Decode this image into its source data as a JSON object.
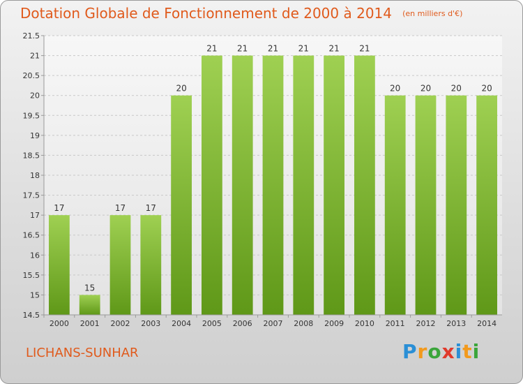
{
  "title": "Dotation Globale de Fonctionnement de 2000 à 2014",
  "unit": "(en milliers d'€)",
  "commune": "LICHANS-SUNHAR",
  "logo": {
    "text": "Proxiti",
    "letters": [
      {
        "ch": "P",
        "color": "#2a8fd6"
      },
      {
        "ch": "r",
        "color": "#f29a1d"
      },
      {
        "ch": "o",
        "color": "#3aa53a"
      },
      {
        "ch": "x",
        "color": "#e0392b"
      },
      {
        "ch": "i",
        "color": "#2a8fd6"
      },
      {
        "ch": "t",
        "color": "#f29a1d"
      },
      {
        "ch": "i",
        "color": "#3aa53a"
      }
    ]
  },
  "colors": {
    "accent": "#e05a1c",
    "bar_top": "#9fd052",
    "bar_bottom": "#5f9818",
    "grid": "#c8c8c8",
    "axis": "#999999",
    "text": "#333333"
  },
  "chart_data": {
    "type": "bar",
    "title": "Dotation Globale de Fonctionnement de 2000 à 2014",
    "subtitle": "(en milliers d'€)",
    "xlabel": "",
    "ylabel": "",
    "categories": [
      "2000",
      "2001",
      "2002",
      "2003",
      "2004",
      "2005",
      "2006",
      "2007",
      "2008",
      "2009",
      "2010",
      "2011",
      "2012",
      "2013",
      "2014"
    ],
    "values": [
      17,
      15,
      17,
      17,
      20,
      21,
      21,
      21,
      21,
      21,
      21,
      20,
      20,
      20,
      20
    ],
    "ylim": [
      14.5,
      21.5
    ],
    "yticks": [
      "14.5",
      "15",
      "15.5",
      "16",
      "16.5",
      "17",
      "17.5",
      "18",
      "18.5",
      "19",
      "19.5",
      "20",
      "20.5",
      "21",
      "21.5"
    ],
    "grid": true,
    "legend": "none"
  }
}
